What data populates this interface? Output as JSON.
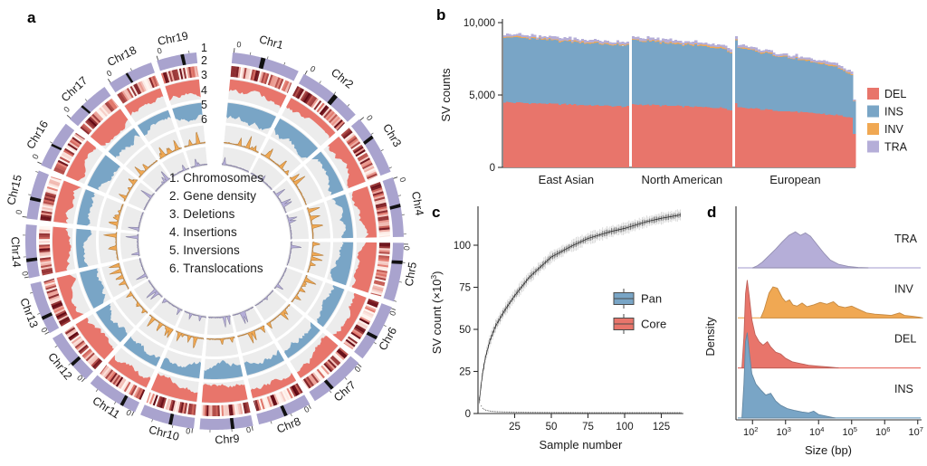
{
  "colors": {
    "del": "#E8756B",
    "ins": "#79A5C6",
    "inv": "#F0A853",
    "tra": "#B5AED8",
    "chrom_ring": "#A9A3CE",
    "band": "#111111",
    "track_bg": "#ECECEC",
    "heat_low": "#FFF6F1",
    "heat_mid": "#E2766A",
    "heat_high": "#5E0712",
    "axis": "#2E2E2E",
    "text": "#1A1A1A",
    "curve_dark": "#3C3C3C",
    "curve_light": "#9A9A9A"
  },
  "chart_data": [
    {
      "id": "a",
      "type": "circos",
      "panel_label": "a",
      "center_legend": [
        "1. Chromosomes",
        "2. Gene density",
        "3. Deletions",
        "4. Insertions",
        "5. Inversions",
        "6. Translocations"
      ],
      "track_numbers": [
        "1",
        "2",
        "3",
        "4",
        "5",
        "6"
      ],
      "zero_label": "0",
      "tracks": [
        "Chromosomes",
        "Gene density",
        "Deletions",
        "Insertions",
        "Inversions",
        "Translocations"
      ],
      "chromosomes": [
        {
          "name": "Chr1",
          "size": 195,
          "band": 0.42
        },
        {
          "name": "Chr2",
          "size": 182,
          "band": 0.55
        },
        {
          "name": "Chr3",
          "size": 160,
          "band": 0.33
        },
        {
          "name": "Chr4",
          "size": 157,
          "band": 0.45
        },
        {
          "name": "Chr5",
          "size": 152,
          "band": 0.3
        },
        {
          "name": "Chr6",
          "size": 150,
          "band": 0.55
        },
        {
          "name": "Chr7",
          "size": 145,
          "band": 0.6
        },
        {
          "name": "Chr8",
          "size": 129,
          "band": 0.45
        },
        {
          "name": "Chr9",
          "size": 124,
          "band": 0.35
        },
        {
          "name": "Chr10",
          "size": 131,
          "band": 0.4
        },
        {
          "name": "Chr11",
          "size": 122,
          "band": 0.25
        },
        {
          "name": "Chr12",
          "size": 120,
          "band": 0.35
        },
        {
          "name": "Chr13",
          "size": 120,
          "band": 0.28
        },
        {
          "name": "Chr14",
          "size": 125,
          "band": 0.3
        },
        {
          "name": "Chr15",
          "size": 104,
          "band": 0.38
        },
        {
          "name": "Chr16",
          "size": 98,
          "band": 0.45
        },
        {
          "name": "Chr17",
          "size": 95,
          "band": 0.35
        },
        {
          "name": "Chr18",
          "size": 91,
          "band": 0.4
        },
        {
          "name": "Chr19",
          "size": 61,
          "band": 0.6
        }
      ]
    },
    {
      "id": "b",
      "type": "stacked-bar",
      "panel_label": "b",
      "ylabel": "SV counts",
      "ytick_values": [
        0,
        5000,
        10000
      ],
      "ytick_labels": [
        "0",
        "5,000",
        "10,000"
      ],
      "ymax": 10000,
      "stack_order": [
        "DEL",
        "INS",
        "INV",
        "TRA"
      ],
      "legend": [
        {
          "label": "DEL",
          "color_key": "del"
        },
        {
          "label": "INS",
          "color_key": "ins"
        },
        {
          "label": "INV",
          "color_key": "inv"
        },
        {
          "label": "TRA",
          "color_key": "tra"
        }
      ],
      "groups": [
        {
          "label": "East Asian",
          "n": 50,
          "del": [
            4500,
            4200
          ],
          "ins": [
            4520,
            4180
          ],
          "inv": 70,
          "tra": 170
        },
        {
          "label": "North American",
          "n": 40,
          "del": [
            4350,
            4080
          ],
          "ins": [
            4420,
            4120
          ],
          "inv": 70,
          "tra": 180,
          "tail": {
            "n": 5,
            "amount": 300
          }
        },
        {
          "label": "European",
          "n": 48,
          "del": [
            4150,
            3520
          ],
          "ins": [
            4120,
            3160
          ],
          "inv": 65,
          "tra": 160,
          "first_total": 9050,
          "tail": {
            "n": 9,
            "amount": 450
          },
          "last": {
            "del": 2300,
            "ins": 2250,
            "inv": 40,
            "tra": 110
          }
        }
      ]
    },
    {
      "id": "c",
      "type": "line",
      "panel_label": "c",
      "xlabel": "Sample number",
      "ylabel_parts": {
        "pre": "SV count (×10",
        "exp": "3",
        "post": ")"
      },
      "xticks": [
        25,
        50,
        75,
        100,
        125
      ],
      "yticks": [
        0,
        25,
        50,
        75,
        100
      ],
      "n_samples": 138,
      "legend": [
        {
          "label": "Pan",
          "color_key": "ins"
        },
        {
          "label": "Core",
          "color_key": "del"
        }
      ],
      "pan": {
        "x": [
          1,
          2,
          3,
          5,
          8,
          12,
          18,
          25,
          35,
          50,
          65,
          75,
          90,
          100,
          115,
          125,
          138
        ],
        "y": [
          8,
          16,
          23,
          33,
          43,
          52,
          61,
          70,
          81,
          93,
          100,
          104,
          108,
          110,
          114,
          116,
          118
        ]
      },
      "core": {
        "x": [
          1,
          2,
          3,
          5,
          8,
          12,
          18,
          25,
          35,
          50,
          65,
          75,
          90,
          100,
          115,
          125,
          138
        ],
        "y": [
          8,
          4.5,
          3,
          2,
          1.4,
          1.1,
          0.9,
          0.8,
          0.7,
          0.6,
          0.55,
          0.5,
          0.5,
          0.5,
          0.5,
          0.5,
          0.5
        ]
      }
    },
    {
      "id": "d",
      "type": "ridgeline",
      "panel_label": "d",
      "xlabel": "Size (bp)",
      "ylabel": "Density",
      "xtick_exps": [
        2,
        3,
        4,
        5,
        6,
        7
      ],
      "xlog_range": [
        1.5,
        7.2
      ],
      "rows": [
        {
          "label": "TRA",
          "color_key": "tra",
          "amp": 0.72,
          "points": [
            [
              2.0,
              0
            ],
            [
              2.15,
              0.06
            ],
            [
              2.3,
              0.16
            ],
            [
              2.5,
              0.34
            ],
            [
              2.7,
              0.52
            ],
            [
              2.9,
              0.72
            ],
            [
              3.1,
              0.9
            ],
            [
              3.3,
              1.0
            ],
            [
              3.45,
              0.9
            ],
            [
              3.6,
              0.97
            ],
            [
              3.75,
              0.88
            ],
            [
              3.95,
              0.65
            ],
            [
              4.15,
              0.42
            ],
            [
              4.35,
              0.22
            ],
            [
              4.6,
              0.1
            ],
            [
              4.9,
              0.04
            ],
            [
              5.2,
              0.01
            ],
            [
              5.5,
              0
            ]
          ]
        },
        {
          "label": "INV",
          "color_key": "inv",
          "amp": 0.62,
          "points": [
            [
              2.25,
              0
            ],
            [
              2.35,
              0.25
            ],
            [
              2.5,
              0.8
            ],
            [
              2.62,
              1.0
            ],
            [
              2.75,
              0.96
            ],
            [
              2.9,
              0.65
            ],
            [
              3.0,
              0.52
            ],
            [
              3.12,
              0.58
            ],
            [
              3.22,
              0.42
            ],
            [
              3.35,
              0.38
            ],
            [
              3.5,
              0.48
            ],
            [
              3.65,
              0.36
            ],
            [
              3.85,
              0.42
            ],
            [
              4.05,
              0.5
            ],
            [
              4.25,
              0.44
            ],
            [
              4.45,
              0.52
            ],
            [
              4.6,
              0.38
            ],
            [
              4.8,
              0.33
            ],
            [
              5.0,
              0.38
            ],
            [
              5.2,
              0.28
            ],
            [
              5.45,
              0.16
            ],
            [
              5.7,
              0.12
            ],
            [
              5.95,
              0.1
            ],
            [
              6.2,
              0.08
            ],
            [
              6.45,
              0.16
            ],
            [
              6.6,
              0.08
            ],
            [
              6.85,
              0.05
            ],
            [
              7.05,
              0.02
            ],
            [
              7.15,
              0
            ]
          ]
        },
        {
          "label": "DEL",
          "color_key": "del",
          "amp": 1.75,
          "points": [
            [
              1.68,
              0
            ],
            [
              1.74,
              0.35
            ],
            [
              1.79,
              0.85
            ],
            [
              1.84,
              1.0
            ],
            [
              1.9,
              0.82
            ],
            [
              1.98,
              0.55
            ],
            [
              2.08,
              0.38
            ],
            [
              2.2,
              0.3
            ],
            [
              2.32,
              0.26
            ],
            [
              2.45,
              0.3
            ],
            [
              2.55,
              0.24
            ],
            [
              2.7,
              0.18
            ],
            [
              2.85,
              0.16
            ],
            [
              3.0,
              0.11
            ],
            [
              3.2,
              0.07
            ],
            [
              3.45,
              0.05
            ],
            [
              3.7,
              0.03
            ],
            [
              4.0,
              0.02
            ],
            [
              4.3,
              0.01
            ],
            [
              4.6,
              0
            ]
          ]
        },
        {
          "label": "INS",
          "color_key": "ins",
          "amp": 1.7,
          "points": [
            [
              1.68,
              0
            ],
            [
              1.74,
              0.4
            ],
            [
              1.79,
              0.9
            ],
            [
              1.84,
              1.0
            ],
            [
              1.9,
              0.78
            ],
            [
              1.98,
              0.52
            ],
            [
              2.1,
              0.4
            ],
            [
              2.25,
              0.33
            ],
            [
              2.4,
              0.27
            ],
            [
              2.55,
              0.29
            ],
            [
              2.7,
              0.2
            ],
            [
              2.85,
              0.15
            ],
            [
              3.05,
              0.11
            ],
            [
              3.25,
              0.09
            ],
            [
              3.5,
              0.07
            ],
            [
              3.7,
              0.06
            ],
            [
              3.85,
              0.08
            ],
            [
              4.0,
              0.04
            ],
            [
              4.25,
              0.02
            ],
            [
              4.5,
              0
            ]
          ]
        }
      ]
    }
  ]
}
